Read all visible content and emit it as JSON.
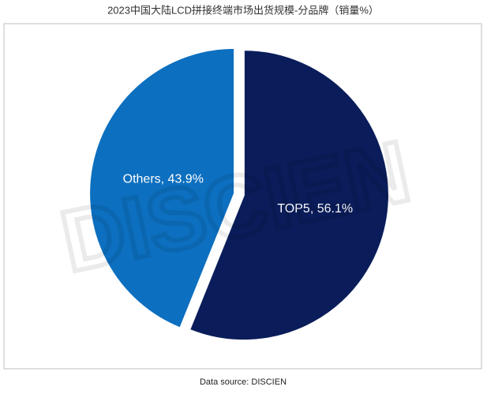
{
  "chart_data": {
    "type": "pie",
    "title": "2023中国大陆LCD拼接终端市场出货规模-分品牌（销量%）",
    "values": [
      56.1,
      43.9
    ],
    "value_labels": [
      "TOP5, 56.1%",
      "Others, 43.9%"
    ],
    "colors": [
      "#0a1d5a",
      "#0d6fbf"
    ],
    "source": "Data source: DISCIEN",
    "watermark": "DISCIEN"
  }
}
